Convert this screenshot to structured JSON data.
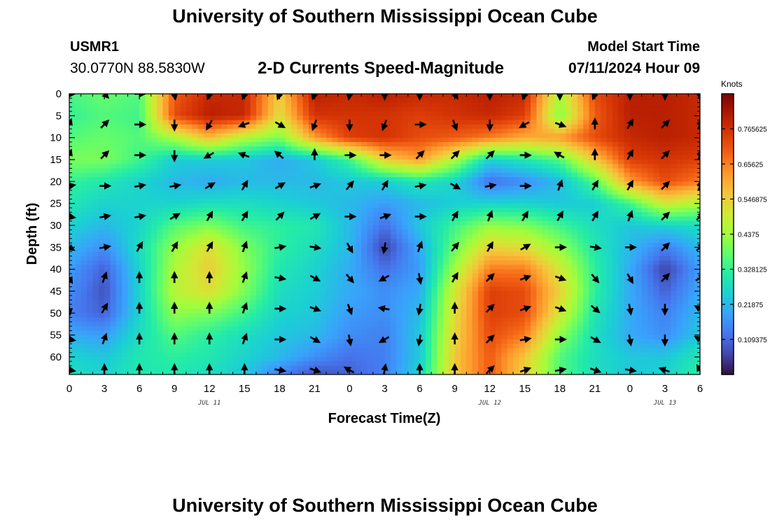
{
  "header": {
    "title": "University of Southern Mississippi Ocean Cube",
    "station_name": "USMR1",
    "station_coords": "30.0770N  88.5830W",
    "plot_title": "2-D Currents Speed-Magnitude",
    "model_start_label": "Model Start Time",
    "model_start_time": "07/11/2024 Hour 09"
  },
  "footer": {
    "title": "University of Southern Mississippi Ocean Cube"
  },
  "chart_data": {
    "type": "heatmap",
    "title": "2-D Currents Speed-Magnitude",
    "xlabel": "Forecast Time(Z)",
    "ylabel": "Depth (ft)",
    "x_ticks": [
      "0",
      "3",
      "6",
      "9",
      "12",
      "15",
      "18",
      "21",
      "0",
      "3",
      "6",
      "9",
      "12",
      "15",
      "18",
      "21",
      "0",
      "3",
      "6"
    ],
    "x_range_hours_from_jul11_00z": [
      0,
      54
    ],
    "date_labels": [
      {
        "label": "JUL 11",
        "at_tick": 12
      },
      {
        "label": "JUL 12",
        "at_tick": 12
      },
      {
        "label": "JUL 13",
        "at_tick": 3
      }
    ],
    "date_label_positions": [
      12,
      36,
      51
    ],
    "y_ticks": [
      0,
      5,
      10,
      15,
      20,
      25,
      30,
      35,
      40,
      45,
      50,
      55,
      60
    ],
    "ylim": [
      0,
      64
    ],
    "y_inverted": true,
    "colorbar": {
      "label": "Knots",
      "ticks": [
        "0.109375",
        "0.21875",
        "0.328125",
        "0.4375",
        "0.546875",
        "0.65625",
        "0.765625"
      ],
      "tick_values": [
        0.109375,
        0.21875,
        0.328125,
        0.4375,
        0.546875,
        0.65625,
        0.765625
      ],
      "range": [
        0,
        0.875
      ],
      "colormap": [
        "#30123b",
        "#4145ab",
        "#4675ed",
        "#39a2fc",
        "#1bcfd4",
        "#24eca6",
        "#61fc6c",
        "#a4fc3b",
        "#d1e834",
        "#f3c63a",
        "#fe9b2d",
        "#f36315",
        "#d93806",
        "#b11901",
        "#7a0403"
      ]
    },
    "speed_grid": {
      "x_hours": [
        0,
        3,
        6,
        9,
        12,
        15,
        18,
        21,
        24,
        27,
        30,
        33,
        36,
        39,
        42,
        45,
        48,
        51,
        54
      ],
      "depths_ft": [
        0,
        5,
        10,
        15,
        20,
        25,
        30,
        35,
        40,
        45,
        50,
        55,
        60,
        64
      ],
      "values_knots": [
        [
          0.35,
          0.38,
          0.36,
          0.7,
          0.78,
          0.78,
          0.55,
          0.8,
          0.78,
          0.8,
          0.78,
          0.78,
          0.8,
          0.78,
          0.45,
          0.72,
          0.8,
          0.8,
          0.78
        ],
        [
          0.33,
          0.36,
          0.34,
          0.72,
          0.8,
          0.78,
          0.52,
          0.76,
          0.76,
          0.76,
          0.74,
          0.76,
          0.78,
          0.74,
          0.4,
          0.7,
          0.8,
          0.8,
          0.78
        ],
        [
          0.36,
          0.38,
          0.36,
          0.45,
          0.58,
          0.46,
          0.4,
          0.62,
          0.74,
          0.76,
          0.72,
          0.7,
          0.66,
          0.6,
          0.62,
          0.72,
          0.78,
          0.8,
          0.78
        ],
        [
          0.4,
          0.4,
          0.34,
          0.25,
          0.25,
          0.24,
          0.2,
          0.24,
          0.34,
          0.55,
          0.62,
          0.45,
          0.26,
          0.3,
          0.36,
          0.56,
          0.74,
          0.76,
          0.74
        ],
        [
          0.33,
          0.3,
          0.26,
          0.22,
          0.2,
          0.22,
          0.22,
          0.22,
          0.24,
          0.25,
          0.3,
          0.26,
          0.12,
          0.16,
          0.22,
          0.36,
          0.62,
          0.72,
          0.66
        ],
        [
          0.3,
          0.26,
          0.26,
          0.26,
          0.28,
          0.28,
          0.26,
          0.24,
          0.22,
          0.18,
          0.22,
          0.25,
          0.26,
          0.26,
          0.24,
          0.25,
          0.34,
          0.5,
          0.45
        ],
        [
          0.26,
          0.22,
          0.26,
          0.36,
          0.4,
          0.34,
          0.32,
          0.3,
          0.22,
          0.12,
          0.24,
          0.34,
          0.42,
          0.4,
          0.34,
          0.28,
          0.24,
          0.26,
          0.28
        ],
        [
          0.22,
          0.16,
          0.28,
          0.42,
          0.52,
          0.4,
          0.32,
          0.28,
          0.22,
          0.06,
          0.2,
          0.38,
          0.54,
          0.52,
          0.42,
          0.3,
          0.22,
          0.14,
          0.22
        ],
        [
          0.18,
          0.1,
          0.26,
          0.45,
          0.55,
          0.42,
          0.3,
          0.26,
          0.2,
          0.12,
          0.18,
          0.44,
          0.66,
          0.66,
          0.5,
          0.32,
          0.2,
          0.06,
          0.18
        ],
        [
          0.16,
          0.08,
          0.26,
          0.46,
          0.52,
          0.4,
          0.28,
          0.25,
          0.2,
          0.16,
          0.2,
          0.5,
          0.74,
          0.72,
          0.54,
          0.32,
          0.2,
          0.1,
          0.2
        ],
        [
          0.14,
          0.1,
          0.26,
          0.42,
          0.4,
          0.34,
          0.26,
          0.24,
          0.18,
          0.16,
          0.22,
          0.52,
          0.74,
          0.72,
          0.5,
          0.3,
          0.2,
          0.14,
          0.22
        ],
        [
          0.2,
          0.18,
          0.28,
          0.36,
          0.32,
          0.28,
          0.24,
          0.22,
          0.16,
          0.14,
          0.24,
          0.54,
          0.72,
          0.66,
          0.42,
          0.28,
          0.2,
          0.16,
          0.24
        ],
        [
          0.26,
          0.24,
          0.3,
          0.32,
          0.3,
          0.26,
          0.22,
          0.16,
          0.12,
          0.14,
          0.24,
          0.56,
          0.7,
          0.56,
          0.36,
          0.28,
          0.24,
          0.24,
          0.3
        ],
        [
          0.28,
          0.26,
          0.3,
          0.3,
          0.28,
          0.24,
          0.14,
          0.08,
          0.1,
          0.14,
          0.26,
          0.56,
          0.7,
          0.54,
          0.36,
          0.28,
          0.24,
          0.26,
          0.32
        ]
      ]
    },
    "arrows": {
      "x_hours": [
        0,
        3,
        6,
        9,
        12,
        15,
        18,
        21,
        24,
        27,
        30,
        33,
        36,
        39,
        42,
        45,
        48,
        51,
        54
      ],
      "depths_ft": [
        0,
        7,
        14,
        21,
        28,
        35,
        42,
        49,
        56,
        63
      ],
      "directions_deg_clockwise_from_north": [
        [
          90,
          135,
          90,
          170,
          200,
          200,
          200,
          200,
          190,
          180,
          180,
          150,
          180,
          200,
          180,
          200,
          180,
          180,
          180
        ],
        [
          20,
          45,
          90,
          180,
          210,
          250,
          120,
          200,
          180,
          200,
          90,
          160,
          180,
          240,
          110,
          0,
          30,
          45,
          20
        ],
        [
          20,
          45,
          90,
          180,
          240,
          290,
          310,
          0,
          90,
          90,
          45,
          45,
          45,
          90,
          300,
          0,
          30,
          45,
          20
        ],
        [
          80,
          90,
          80,
          80,
          60,
          30,
          60,
          70,
          40,
          30,
          80,
          120,
          80,
          90,
          20,
          30,
          30,
          45,
          20
        ],
        [
          100,
          80,
          80,
          60,
          30,
          30,
          45,
          60,
          90,
          70,
          90,
          30,
          20,
          30,
          30,
          30,
          20,
          45,
          45
        ],
        [
          120,
          80,
          30,
          30,
          30,
          20,
          80,
          100,
          150,
          190,
          20,
          40,
          30,
          60,
          90,
          100,
          90,
          45,
          45
        ],
        [
          150,
          20,
          0,
          0,
          0,
          20,
          100,
          120,
          140,
          240,
          170,
          30,
          45,
          70,
          110,
          140,
          150,
          45,
          60
        ],
        [
          170,
          30,
          0,
          0,
          0,
          20,
          90,
          110,
          160,
          280,
          190,
          0,
          45,
          70,
          110,
          130,
          170,
          180,
          300
        ],
        [
          100,
          20,
          0,
          0,
          0,
          20,
          90,
          120,
          170,
          240,
          190,
          0,
          45,
          80,
          90,
          120,
          170,
          180,
          300
        ],
        [
          100,
          0,
          0,
          0,
          0,
          0,
          100,
          110,
          300,
          10,
          0,
          0,
          45,
          70,
          80,
          110,
          100,
          290,
          330
        ]
      ]
    }
  }
}
